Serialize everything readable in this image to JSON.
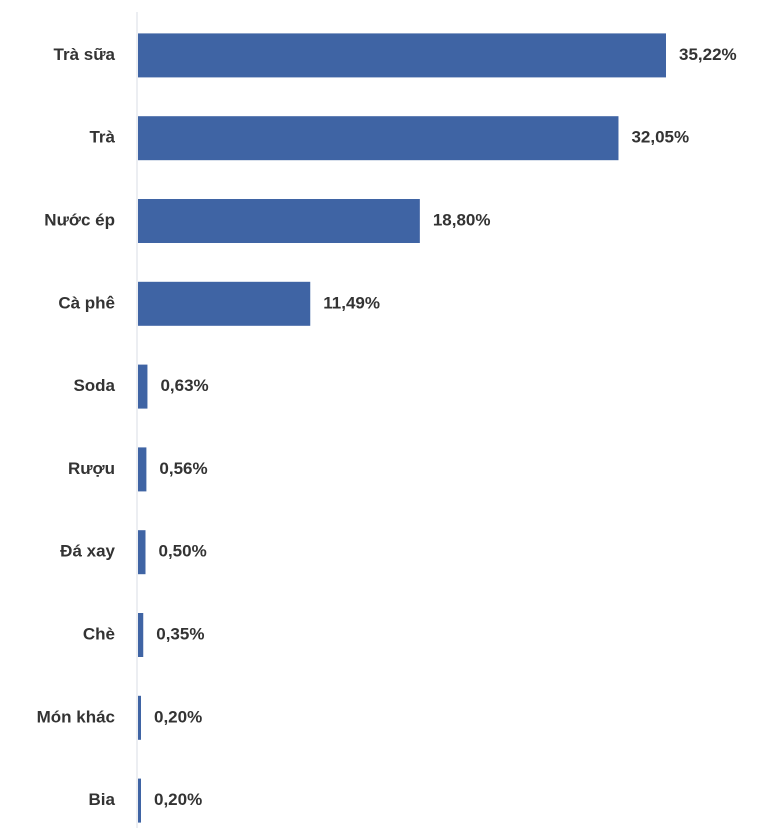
{
  "chart_data": {
    "type": "bar",
    "orientation": "horizontal",
    "categories": [
      "Trà sữa",
      "Trà",
      "Nước ép",
      "Cà phê",
      "Soda",
      "Rượu",
      "Đá xay",
      "Chè",
      "Món khác",
      "Bia"
    ],
    "values": [
      35.22,
      32.05,
      18.8,
      11.49,
      0.63,
      0.56,
      0.5,
      0.35,
      0.2,
      0.2
    ],
    "value_labels": [
      "35,22%",
      "32,05%",
      "18,80%",
      "11,49%",
      "0,63%",
      "0,56%",
      "0,50%",
      "0,35%",
      "0,20%",
      "0,20%"
    ],
    "color": "#3f64a4"
  }
}
